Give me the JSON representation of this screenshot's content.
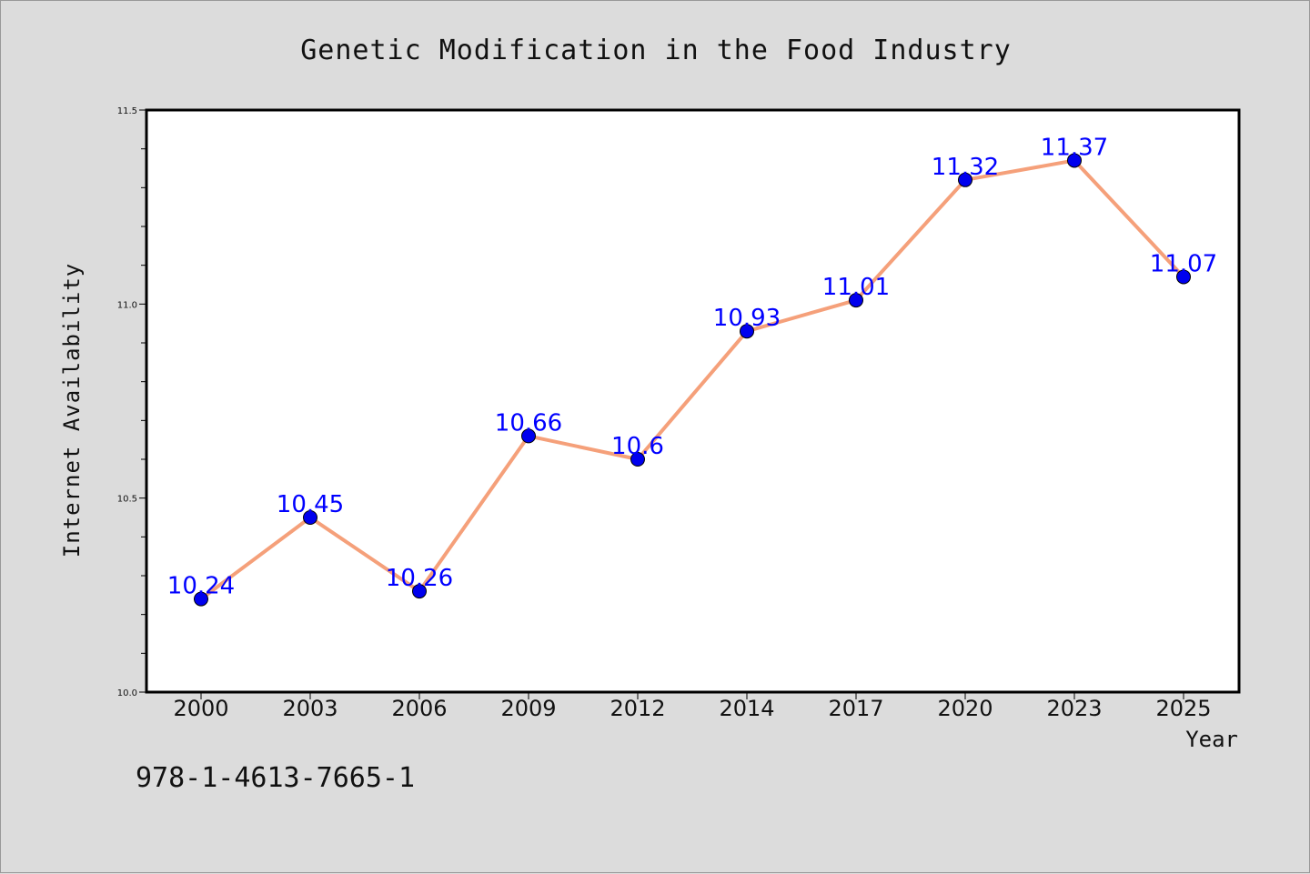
{
  "chart_data": {
    "type": "line",
    "title": "Genetic Modification in the Food Industry",
    "xlabel": "Year",
    "ylabel": "Internet Availability",
    "categories": [
      "2000",
      "2003",
      "2006",
      "2009",
      "2012",
      "2014",
      "2017",
      "2020",
      "2023",
      "2025"
    ],
    "series": [
      {
        "values": [
          10.24,
          10.45,
          10.26,
          10.66,
          10.6,
          10.93,
          11.01,
          11.32,
          11.37,
          11.07
        ],
        "labels": [
          "10.24",
          "10.45",
          "10.26",
          "10.66",
          "10.6",
          "10.93",
          "11.01",
          "11.32",
          "11.37",
          "11.07"
        ],
        "line_color": "#f5a07a",
        "marker_color": "#0000ee",
        "label_color": "#0000ff"
      }
    ],
    "ylim": [
      10.0,
      11.5
    ],
    "yticks": [
      "10.0",
      "10.5",
      "11.0",
      "11.5"
    ],
    "grid": false,
    "legend": "none"
  },
  "footer_text": "978-1-4613-7665-1"
}
